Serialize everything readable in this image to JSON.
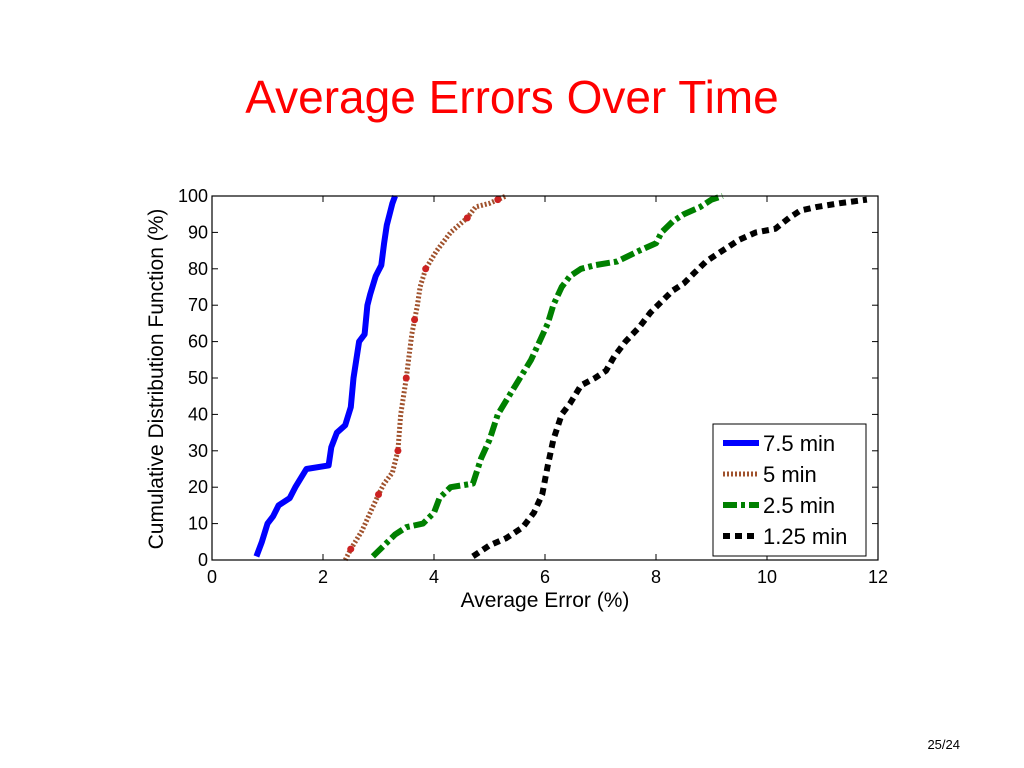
{
  "slide": {
    "title": "Average Errors Over Time",
    "title_color": "#ff0000",
    "page_number": "25/24"
  },
  "chart_data": {
    "type": "line",
    "title": "",
    "xlabel": "Average Error (%)",
    "ylabel": "Cumulative Distribution Function (%)",
    "xlim": [
      0,
      12
    ],
    "ylim": [
      0,
      100
    ],
    "xticks": [
      0,
      2,
      4,
      6,
      8,
      10,
      12
    ],
    "yticks": [
      0,
      10,
      20,
      30,
      40,
      50,
      60,
      70,
      80,
      90,
      100
    ],
    "grid": false,
    "legend_position": "bottom-right",
    "series": [
      {
        "name": "7.5 min",
        "color": "#0000ff",
        "style": "solid",
        "x": [
          0.8,
          0.9,
          1.0,
          1.1,
          1.2,
          1.4,
          1.5,
          1.7,
          2.1,
          2.15,
          2.25,
          2.4,
          2.5,
          2.55,
          2.6,
          2.65,
          2.75,
          2.8,
          2.85,
          2.95,
          3.05,
          3.1,
          3.15,
          3.2,
          3.25,
          3.3
        ],
        "y": [
          1,
          5,
          10,
          12,
          15,
          17,
          20,
          25,
          26,
          31,
          35,
          37,
          42,
          50,
          55,
          60,
          62,
          70,
          73,
          78,
          81,
          87,
          92,
          95,
          98,
          100
        ]
      },
      {
        "name": "5 min",
        "color": "#a0522d",
        "style": "dotted",
        "markers": "#cc2222",
        "x": [
          2.4,
          2.5,
          2.7,
          2.85,
          3.0,
          3.1,
          3.25,
          3.35,
          3.4,
          3.45,
          3.5,
          3.55,
          3.6,
          3.65,
          3.7,
          3.75,
          3.85,
          4.05,
          4.3,
          4.6,
          4.75,
          5.0,
          5.15,
          5.3
        ],
        "y": [
          0,
          3,
          8,
          13,
          18,
          21,
          24,
          30,
          40,
          45,
          50,
          56,
          62,
          66,
          70,
          75,
          80,
          85,
          90,
          94,
          97,
          98,
          99,
          100
        ]
      },
      {
        "name": "2.5 min",
        "color": "#008000",
        "style": "dash-dot",
        "x": [
          2.9,
          3.1,
          3.3,
          3.5,
          3.8,
          4.0,
          4.1,
          4.3,
          4.7,
          4.85,
          5.0,
          5.15,
          5.35,
          5.55,
          5.75,
          5.9,
          6.05,
          6.15,
          6.3,
          6.45,
          6.65,
          6.9,
          7.3,
          7.7,
          8.0,
          8.1,
          8.3,
          8.5,
          8.8,
          9.0,
          9.2
        ],
        "y": [
          1,
          4,
          7,
          9,
          10,
          13,
          17,
          20,
          21,
          28,
          33,
          40,
          45,
          50,
          55,
          60,
          65,
          70,
          75,
          78,
          80,
          81,
          82,
          85,
          87,
          90,
          93,
          95,
          97,
          99,
          100
        ]
      },
      {
        "name": "1.25 min",
        "color": "#000000",
        "style": "dashed",
        "x": [
          4.7,
          5.0,
          5.3,
          5.6,
          5.8,
          5.95,
          6.05,
          6.15,
          6.3,
          6.45,
          6.65,
          6.9,
          7.1,
          7.25,
          7.45,
          7.7,
          7.9,
          8.1,
          8.3,
          8.5,
          8.7,
          8.9,
          9.1,
          9.3,
          9.5,
          9.8,
          10.15,
          10.4,
          10.6,
          10.9,
          11.3,
          11.8
        ],
        "y": [
          1,
          4,
          6,
          9,
          13,
          18,
          26,
          33,
          40,
          43,
          48,
          50,
          52,
          56,
          60,
          64,
          68,
          71,
          74,
          76,
          79,
          82,
          84,
          86,
          88,
          90,
          91,
          94,
          96,
          97,
          98,
          99
        ]
      }
    ]
  }
}
